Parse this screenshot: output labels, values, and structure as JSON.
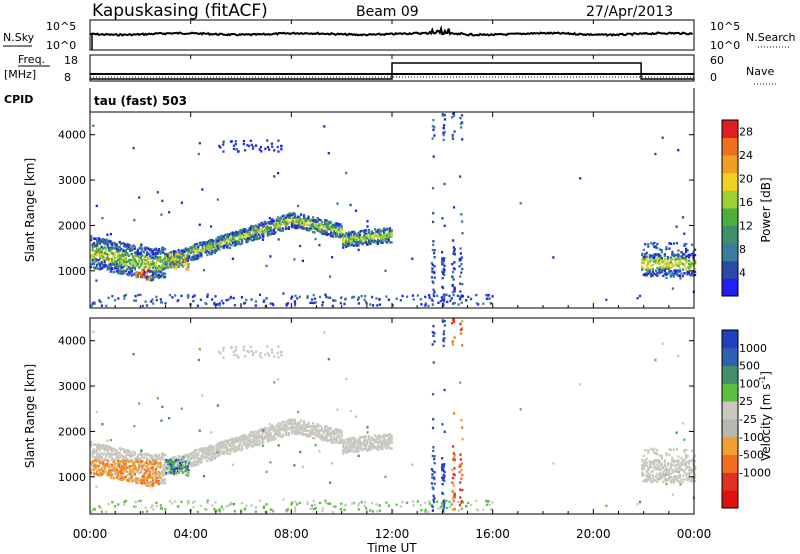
{
  "header": {
    "station": "Kapuskasing (fitACF)",
    "beam": "Beam 09",
    "date": "27/Apr/2013"
  },
  "noise_panel": {
    "left_label": "N.Sky",
    "right_label": "N.Search",
    "left_ticks": [
      "10^5",
      "10^0"
    ],
    "right_ticks": [
      "10^5",
      "10^0"
    ]
  },
  "freq_panel": {
    "left_label_line1": "Freq.",
    "left_label_line2": "[MHz]",
    "right_label": "Nave",
    "left_ticks": [
      "18",
      "8"
    ],
    "right_ticks": [
      "60",
      "0"
    ],
    "nave_hours": [
      0,
      12.0,
      12.0,
      21.9,
      21.9,
      24
    ],
    "nave_values": [
      0,
      0,
      60,
      60,
      0,
      0
    ]
  },
  "cpid": {
    "label": "CPID",
    "mode": "tau (fast) 503"
  },
  "chart_data": [
    {
      "type": "heatmap",
      "name": "power",
      "ylabel": "Slant Range [km]",
      "ylim": [
        180,
        4500
      ],
      "yticks": [
        "1000",
        "2000",
        "3000",
        "4000"
      ],
      "xlim": [
        0,
        24
      ],
      "colorbar": {
        "label": "Power [dB]",
        "ticks": [
          "4",
          "8",
          "12",
          "16",
          "20",
          "24",
          "28"
        ],
        "range": [
          0,
          30
        ]
      }
    },
    {
      "type": "heatmap",
      "name": "velocity",
      "ylabel": "Slant Range [km]",
      "ylim": [
        180,
        4500
      ],
      "yticks": [
        "1000",
        "2000",
        "3000",
        "4000"
      ],
      "xlim": [
        0,
        24
      ],
      "colorbar": {
        "label": "Velocity [m s",
        "label_sup": "-1",
        "label_end": "]",
        "ticks": [
          "1000",
          "500",
          "100",
          "25",
          "-25",
          "-100",
          "-500",
          "-1000"
        ]
      }
    }
  ],
  "x_axis": {
    "ticks": [
      "00:00",
      "04:00",
      "08:00",
      "12:00",
      "16:00",
      "20:00",
      "00:00"
    ],
    "label": "Time UT"
  },
  "colors": {
    "power_scale": [
      "#2020f0",
      "#2b4aa8",
      "#3a7d9a",
      "#3f8f6a",
      "#4caf3c",
      "#9fd032",
      "#f0d020",
      "#f0a020",
      "#f07020",
      "#e02020"
    ],
    "velocity_scale": [
      "#2040c0",
      "#3060b0",
      "#3f8f6a",
      "#5cc040",
      "#c8c8c0",
      "#b8b8b0",
      "#f0a030",
      "#f07020",
      "#e03020",
      "#e01010"
    ],
    "ground_scatter": "#c8c8c0"
  }
}
